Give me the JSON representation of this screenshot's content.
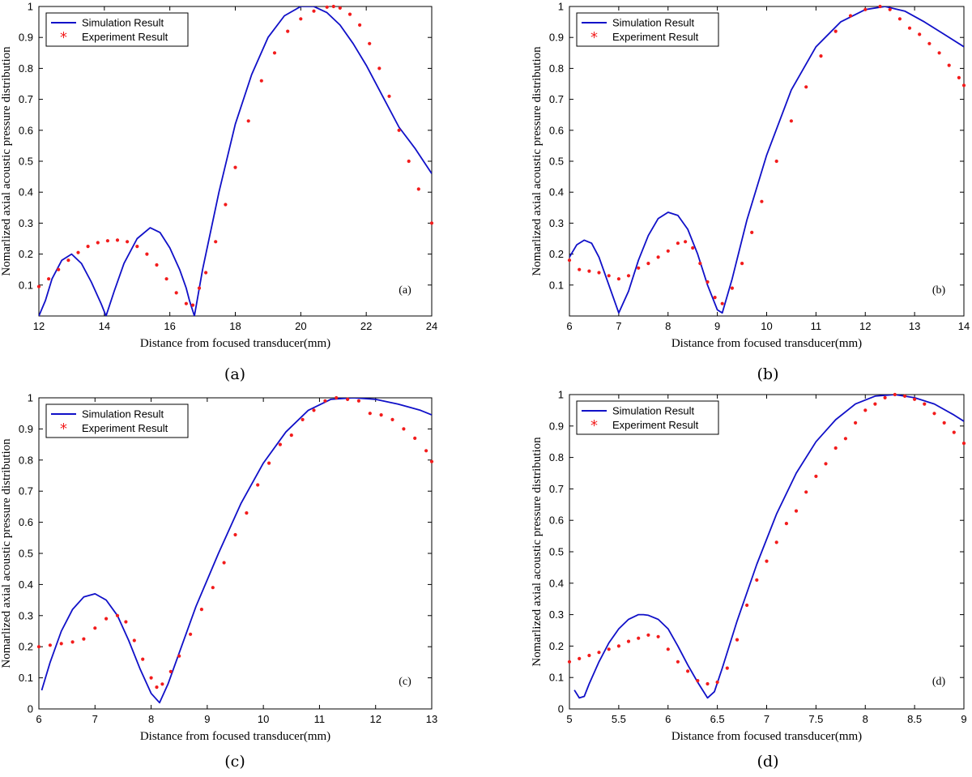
{
  "colors": {
    "simulation": "#1010c8",
    "experiment": "#f21c1c",
    "axis": "#000000"
  },
  "legend": {
    "simulation_label": "Simulation Result",
    "experiment_label": "Experiment Result",
    "experiment_marker": "*",
    "placement": "top-left"
  },
  "chart_data": [
    {
      "type": "line",
      "panel_tag": "(a)",
      "caption": "(a)",
      "xlabel": "Distance from focused transducer(mm)",
      "ylabel": "Nomarlized axial acoustic pressure distribution",
      "xlim": [
        12,
        24
      ],
      "ylim": [
        0,
        1
      ],
      "xticks": [
        12,
        14,
        16,
        18,
        20,
        22,
        24
      ],
      "yticks": [
        0.1,
        0.2,
        0.3,
        0.4,
        0.5,
        0.6,
        0.7,
        0.8,
        0.9,
        1
      ],
      "grid": false,
      "series": [
        {
          "name": "Simulation Result",
          "style": "line",
          "x": [
            12.0,
            12.2,
            12.4,
            12.7,
            13.0,
            13.3,
            13.6,
            13.9,
            14.05,
            14.3,
            14.6,
            15.0,
            15.4,
            15.7,
            16.0,
            16.3,
            16.5,
            16.6,
            16.75,
            17.0,
            17.5,
            18.0,
            18.5,
            19.0,
            19.5,
            20.0,
            20.4,
            20.8,
            21.2,
            21.6,
            22.0,
            22.5,
            23.0,
            23.5,
            24.0
          ],
          "y": [
            0.0,
            0.05,
            0.12,
            0.18,
            0.2,
            0.17,
            0.11,
            0.04,
            0.0,
            0.08,
            0.17,
            0.25,
            0.285,
            0.27,
            0.22,
            0.15,
            0.09,
            0.05,
            0.0,
            0.15,
            0.4,
            0.62,
            0.78,
            0.9,
            0.97,
            1.0,
            1.0,
            0.98,
            0.94,
            0.88,
            0.81,
            0.71,
            0.61,
            0.54,
            0.46
          ]
        },
        {
          "name": "Experiment Result",
          "style": "marker",
          "x": [
            12.0,
            12.3,
            12.6,
            12.9,
            13.2,
            13.5,
            13.8,
            14.1,
            14.4,
            14.7,
            15.0,
            15.3,
            15.6,
            15.9,
            16.2,
            16.5,
            16.7,
            16.9,
            17.1,
            17.4,
            17.7,
            18.0,
            18.4,
            18.8,
            19.2,
            19.6,
            20.0,
            20.4,
            20.8,
            21.0,
            21.2,
            21.5,
            21.8,
            22.1,
            22.4,
            22.7,
            23.0,
            23.3,
            23.6,
            24.0
          ],
          "y": [
            0.095,
            0.12,
            0.15,
            0.18,
            0.205,
            0.225,
            0.237,
            0.243,
            0.245,
            0.24,
            0.225,
            0.2,
            0.165,
            0.12,
            0.075,
            0.04,
            0.035,
            0.09,
            0.14,
            0.24,
            0.36,
            0.48,
            0.63,
            0.76,
            0.85,
            0.92,
            0.96,
            0.985,
            0.998,
            1.0,
            0.995,
            0.975,
            0.94,
            0.88,
            0.8,
            0.71,
            0.6,
            0.5,
            0.41,
            0.3
          ]
        }
      ]
    },
    {
      "type": "line",
      "panel_tag": "(b)",
      "caption": "(b)",
      "xlabel": "Distance from focused transducer(mm)",
      "ylabel": "Nomarlized axial acoustic pressure distribution",
      "xlim": [
        6,
        14
      ],
      "ylim": [
        0,
        1
      ],
      "xticks": [
        6,
        7,
        8,
        9,
        10,
        11,
        12,
        13,
        14
      ],
      "yticks": [
        0.1,
        0.2,
        0.3,
        0.4,
        0.5,
        0.6,
        0.7,
        0.8,
        0.9,
        1
      ],
      "grid": false,
      "series": [
        {
          "name": "Simulation Result",
          "style": "line",
          "x": [
            6.0,
            6.15,
            6.3,
            6.45,
            6.6,
            6.8,
            7.0,
            7.2,
            7.4,
            7.6,
            7.8,
            8.0,
            8.2,
            8.4,
            8.6,
            8.8,
            9.0,
            9.1,
            9.3,
            9.6,
            10.0,
            10.5,
            11.0,
            11.5,
            12.0,
            12.4,
            12.8,
            13.2,
            13.6,
            14.0
          ],
          "y": [
            0.19,
            0.23,
            0.245,
            0.235,
            0.19,
            0.1,
            0.01,
            0.08,
            0.18,
            0.26,
            0.315,
            0.335,
            0.325,
            0.28,
            0.2,
            0.1,
            0.02,
            0.01,
            0.12,
            0.31,
            0.52,
            0.73,
            0.87,
            0.95,
            0.99,
            1.0,
            0.985,
            0.95,
            0.91,
            0.87
          ]
        },
        {
          "name": "Experiment Result",
          "style": "marker",
          "x": [
            6.0,
            6.2,
            6.4,
            6.6,
            6.8,
            7.0,
            7.2,
            7.4,
            7.6,
            7.8,
            8.0,
            8.2,
            8.35,
            8.5,
            8.65,
            8.8,
            8.95,
            9.1,
            9.3,
            9.5,
            9.7,
            9.9,
            10.2,
            10.5,
            10.8,
            11.1,
            11.4,
            11.7,
            12.0,
            12.3,
            12.5,
            12.7,
            12.9,
            13.1,
            13.3,
            13.5,
            13.7,
            13.9,
            14.0
          ],
          "y": [
            0.18,
            0.15,
            0.145,
            0.14,
            0.13,
            0.12,
            0.13,
            0.155,
            0.17,
            0.19,
            0.21,
            0.235,
            0.24,
            0.22,
            0.17,
            0.11,
            0.06,
            0.04,
            0.09,
            0.17,
            0.27,
            0.37,
            0.5,
            0.63,
            0.74,
            0.84,
            0.92,
            0.97,
            0.99,
            1.0,
            0.99,
            0.96,
            0.93,
            0.91,
            0.88,
            0.85,
            0.81,
            0.77,
            0.745
          ]
        }
      ]
    },
    {
      "type": "line",
      "panel_tag": "(c)",
      "caption": "(c)",
      "xlabel": "Distance from focused transducer(mm)",
      "ylabel": "Nomarlized axial acoustic pressure distribution",
      "xlim": [
        6,
        13
      ],
      "ylim": [
        0,
        1
      ],
      "xticks": [
        6,
        7,
        8,
        9,
        10,
        11,
        12,
        13
      ],
      "yticks": [
        0,
        0.1,
        0.2,
        0.3,
        0.4,
        0.5,
        0.6,
        0.7,
        0.8,
        0.9,
        1
      ],
      "grid": false,
      "series": [
        {
          "name": "Simulation Result",
          "style": "line",
          "x": [
            6.05,
            6.2,
            6.4,
            6.6,
            6.8,
            7.0,
            7.2,
            7.4,
            7.6,
            7.8,
            8.0,
            8.15,
            8.3,
            8.5,
            8.8,
            9.2,
            9.6,
            10.0,
            10.4,
            10.8,
            11.2,
            11.6,
            12.0,
            12.4,
            12.8,
            13.0
          ],
          "y": [
            0.06,
            0.15,
            0.25,
            0.32,
            0.36,
            0.37,
            0.35,
            0.3,
            0.22,
            0.13,
            0.05,
            0.02,
            0.08,
            0.18,
            0.33,
            0.5,
            0.66,
            0.79,
            0.89,
            0.96,
            0.995,
            1.0,
            0.995,
            0.98,
            0.96,
            0.945
          ]
        },
        {
          "name": "Experiment Result",
          "style": "marker",
          "x": [
            6.0,
            6.2,
            6.4,
            6.6,
            6.8,
            7.0,
            7.2,
            7.4,
            7.55,
            7.7,
            7.85,
            8.0,
            8.1,
            8.2,
            8.35,
            8.5,
            8.7,
            8.9,
            9.1,
            9.3,
            9.5,
            9.7,
            9.9,
            10.1,
            10.3,
            10.5,
            10.7,
            10.9,
            11.1,
            11.3,
            11.5,
            11.7,
            11.9,
            12.1,
            12.3,
            12.5,
            12.7,
            12.9,
            13.0
          ],
          "y": [
            0.2,
            0.205,
            0.21,
            0.215,
            0.225,
            0.26,
            0.29,
            0.3,
            0.28,
            0.22,
            0.16,
            0.1,
            0.07,
            0.08,
            0.12,
            0.17,
            0.24,
            0.32,
            0.39,
            0.47,
            0.56,
            0.63,
            0.72,
            0.79,
            0.85,
            0.88,
            0.93,
            0.96,
            0.99,
            1.0,
            0.995,
            0.99,
            0.95,
            0.945,
            0.93,
            0.9,
            0.87,
            0.83,
            0.795
          ]
        }
      ]
    },
    {
      "type": "line",
      "panel_tag": "(d)",
      "caption": "(d)",
      "xlabel": "Distance from focused transducer(mm)",
      "ylabel": "Nomarlized axial acoustic pressure distribution",
      "xlim": [
        5,
        9
      ],
      "ylim": [
        0,
        1
      ],
      "xticks": [
        5,
        5.5,
        6,
        6.5,
        7,
        7.5,
        8,
        8.5,
        9
      ],
      "yticks": [
        0,
        0.1,
        0.2,
        0.3,
        0.4,
        0.5,
        0.6,
        0.7,
        0.8,
        0.9,
        1
      ],
      "grid": false,
      "series": [
        {
          "name": "Simulation Result",
          "style": "line",
          "x": [
            5.05,
            5.1,
            5.15,
            5.2,
            5.3,
            5.4,
            5.5,
            5.6,
            5.7,
            5.75,
            5.8,
            5.9,
            6.0,
            6.1,
            6.2,
            6.3,
            6.4,
            6.47,
            6.55,
            6.7,
            6.9,
            7.1,
            7.3,
            7.5,
            7.7,
            7.9,
            8.1,
            8.3,
            8.5,
            8.7,
            8.9,
            9.0
          ],
          "y": [
            0.06,
            0.035,
            0.04,
            0.08,
            0.15,
            0.21,
            0.255,
            0.285,
            0.3,
            0.3,
            0.298,
            0.285,
            0.255,
            0.2,
            0.14,
            0.085,
            0.035,
            0.055,
            0.13,
            0.28,
            0.46,
            0.62,
            0.75,
            0.85,
            0.92,
            0.97,
            0.995,
            1.0,
            0.99,
            0.97,
            0.935,
            0.915
          ]
        },
        {
          "name": "Experiment Result",
          "style": "marker",
          "x": [
            5.0,
            5.1,
            5.2,
            5.3,
            5.4,
            5.5,
            5.6,
            5.7,
            5.8,
            5.9,
            6.0,
            6.1,
            6.2,
            6.3,
            6.4,
            6.5,
            6.6,
            6.7,
            6.8,
            6.9,
            7.0,
            7.1,
            7.2,
            7.3,
            7.4,
            7.5,
            7.6,
            7.7,
            7.8,
            7.9,
            8.0,
            8.1,
            8.2,
            8.3,
            8.4,
            8.5,
            8.6,
            8.7,
            8.8,
            8.9,
            9.0
          ],
          "y": [
            0.15,
            0.16,
            0.17,
            0.18,
            0.19,
            0.2,
            0.215,
            0.225,
            0.235,
            0.23,
            0.19,
            0.15,
            0.12,
            0.09,
            0.08,
            0.085,
            0.13,
            0.22,
            0.33,
            0.41,
            0.47,
            0.53,
            0.59,
            0.63,
            0.69,
            0.74,
            0.78,
            0.83,
            0.86,
            0.91,
            0.95,
            0.97,
            0.99,
            1.0,
            0.995,
            0.985,
            0.97,
            0.94,
            0.91,
            0.88,
            0.845
          ]
        }
      ]
    }
  ]
}
